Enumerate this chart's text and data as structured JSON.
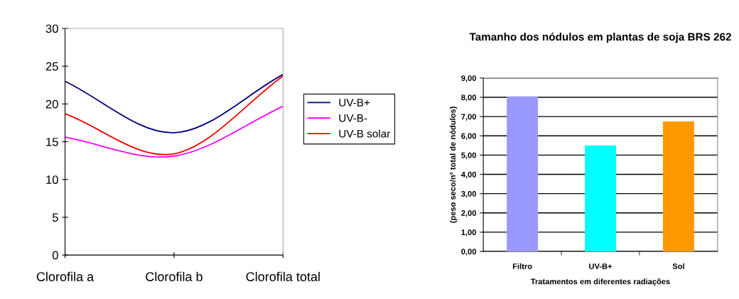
{
  "chart_data": [
    {
      "type": "line",
      "categories": [
        "Clorofila a",
        "Clorofila b",
        "Clorofila total"
      ],
      "ylim": [
        0,
        30
      ],
      "yticks": [
        0,
        5,
        10,
        15,
        20,
        25,
        30
      ],
      "grid": false,
      "legend": "right",
      "marker": "none",
      "line_style": "solid",
      "series": [
        {
          "name": "UV-B+",
          "color": "#000080",
          "values": [
            23.0,
            16.2,
            23.9
          ]
        },
        {
          "name": "UV-B-",
          "color": "#ff00ff",
          "values": [
            15.6,
            13.1,
            19.7
          ]
        },
        {
          "name": "UV-B solar",
          "color": "#ff0000",
          "values": [
            18.7,
            13.4,
            23.7
          ]
        }
      ]
    },
    {
      "type": "bar",
      "title": "Tamanho dos nódulos em plantas de soja BRS 262",
      "xlabel": "Tratamentos em diferentes radiações",
      "ylabel": "(peso seco/nº total de nódulos)",
      "categories": [
        "Filtro",
        "UV-B+",
        "Sol"
      ],
      "values": [
        8.05,
        5.5,
        6.75
      ],
      "colors": [
        "#9999ff",
        "#00ffff",
        "#ff9900"
      ],
      "ylim": [
        0,
        9
      ],
      "yticks": [
        {
          "value": 0,
          "label": "0,00"
        },
        {
          "value": 1,
          "label": "1,00"
        },
        {
          "value": 2,
          "label": "2,00"
        },
        {
          "value": 3,
          "label": "3,00"
        },
        {
          "value": 4,
          "label": "4,00"
        },
        {
          "value": 5,
          "label": "5,00"
        },
        {
          "value": 6,
          "label": "6,00"
        },
        {
          "value": 7,
          "label": "7,00"
        },
        {
          "value": 8,
          "label": "8,00"
        },
        {
          "value": 9,
          "label": "9,00"
        }
      ],
      "grid": "y",
      "legend": false
    }
  ]
}
